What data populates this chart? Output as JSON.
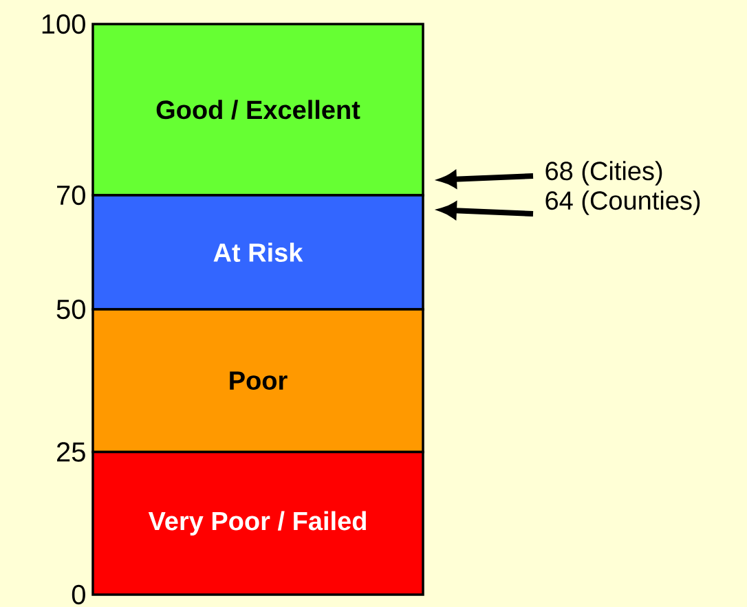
{
  "chart_data": {
    "type": "bar",
    "stacked": true,
    "categories": [
      null
    ],
    "series": [
      {
        "name": "Very Poor / Failed",
        "color": "#ff0000",
        "values": [
          25
        ]
      },
      {
        "name": "Poor",
        "color": "#ff9900",
        "values": [
          25
        ]
      },
      {
        "name": "At Risk",
        "color": "#3366ff",
        "values": [
          20
        ]
      },
      {
        "name": "Good / Excellent",
        "color": "#66ff33",
        "values": [
          30
        ]
      }
    ],
    "ylim": [
      0,
      100
    ],
    "yticks": [
      0,
      25,
      50,
      70,
      100
    ],
    "annotations": [
      "68 (Cities)",
      "64 (Counties)"
    ]
  }
}
